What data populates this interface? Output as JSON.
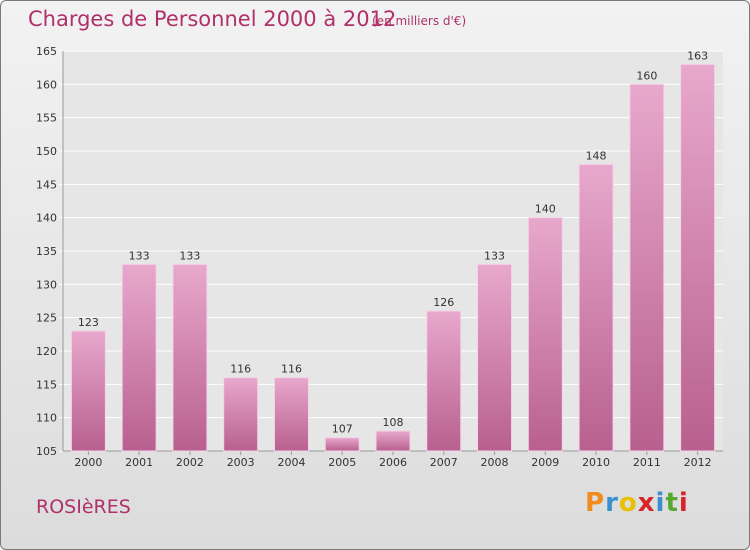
{
  "title": "Charges de Personnel 2000 à 2012",
  "subtitle": "(en milliers d'€)",
  "city": "ROSIèRES",
  "logo": {
    "letters": [
      "P",
      "r",
      "o",
      "x",
      "i",
      "t",
      "i"
    ],
    "colors": [
      "#f08c1e",
      "#3a8fd0",
      "#e8c000",
      "#d8232a",
      "#3a8fd0",
      "#55a832",
      "#d8232a"
    ]
  },
  "colors": {
    "accent": "#b0306a",
    "bar_light": "#e8a8cc",
    "bar_dark": "#b8608f",
    "grid": "#ffffff"
  },
  "chart_data": {
    "type": "bar",
    "title": "Charges de Personnel 2000 à 2012",
    "subtitle": "(en milliers d'€)",
    "categories": [
      "2000",
      "2001",
      "2002",
      "2003",
      "2004",
      "2005",
      "2006",
      "2007",
      "2008",
      "2009",
      "2010",
      "2011",
      "2012"
    ],
    "values": [
      123,
      133,
      133,
      116,
      116,
      107,
      108,
      126,
      133,
      140,
      148,
      160,
      163
    ],
    "ylim": [
      105,
      165
    ],
    "yticks": [
      105,
      110,
      115,
      120,
      125,
      130,
      135,
      140,
      145,
      150,
      155,
      160,
      165
    ],
    "grid": true,
    "xlabel": "",
    "ylabel": ""
  }
}
